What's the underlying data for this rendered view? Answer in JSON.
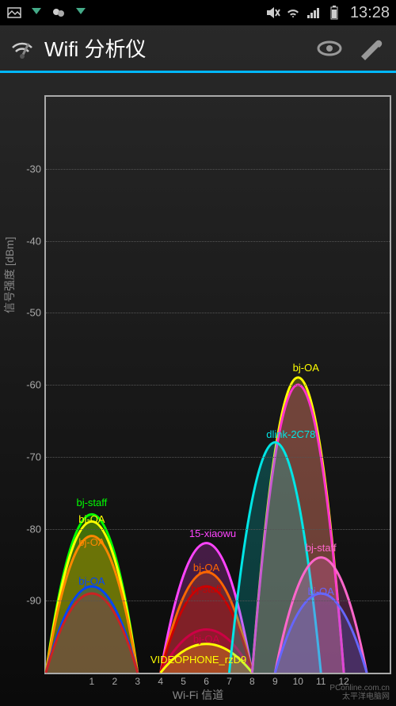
{
  "status_bar": {
    "time": "13:28",
    "icons_left": [
      "gallery",
      "download",
      "chat",
      "app"
    ],
    "icons_right": [
      "mute",
      "wifi",
      "signal",
      "battery"
    ]
  },
  "app_bar": {
    "title": "Wifi 分析仪",
    "toolbar": {
      "view_label": "view",
      "settings_label": "settings"
    }
  },
  "chart": {
    "type": "wifi-channel-parabolas",
    "y_axis": {
      "title": "信号强度 [dBm]",
      "min": -100,
      "max": -20,
      "ticks": [
        -30,
        -40,
        -50,
        -60,
        -70,
        -80,
        -90
      ],
      "grid_color": "#555555",
      "label_color": "#aaaaaa"
    },
    "x_axis": {
      "title": "Wi-Fi 信道",
      "min": -1,
      "max": 14,
      "ticks": [
        1,
        2,
        3,
        4,
        5,
        6,
        7,
        8,
        9,
        10,
        11,
        12
      ],
      "label_color": "#aaaaaa"
    },
    "background": "transparent",
    "border_color": "#aaaaaa",
    "networks": [
      {
        "ssid": "bj-staff",
        "channel": 1,
        "rssi": -78,
        "color": "#00ff00",
        "label_vshift": -6
      },
      {
        "ssid": "bj-OA",
        "channel": 1,
        "rssi": -79,
        "color": "#ffff00",
        "label_vshift": 6
      },
      {
        "ssid": "bj-OA",
        "channel": 1,
        "rssi": -81,
        "color": "#ff8800",
        "label_vshift": 16
      },
      {
        "ssid": "bj-OA",
        "channel": 1,
        "rssi": -88,
        "color": "#0044ff",
        "label_vshift": 2
      },
      {
        "ssid": "",
        "channel": 1,
        "rssi": -89,
        "color": "#cc2222",
        "label_vshift": 0
      },
      {
        "ssid": "15-xiaowu",
        "channel": 6,
        "rssi": -82,
        "color": "#ff44ff",
        "label_vshift": -4,
        "label_hshift": 8
      },
      {
        "ssid": "bj-OA",
        "channel": 6,
        "rssi": -86,
        "color": "#ff6600",
        "label_vshift": 3
      },
      {
        "ssid": "bj-staff",
        "channel": 6,
        "rssi": -88,
        "color": "#cc0000",
        "label_vshift": 12
      },
      {
        "ssid": "bj-OA",
        "channel": 6,
        "rssi": -94,
        "color": "#cc0044",
        "label_vshift": 20
      },
      {
        "ssid": "VIDEOPHONE_rzD9",
        "channel": 6,
        "rssi": -96,
        "color": "#ffff00",
        "label_vshift": 28,
        "label_hshift": -10
      },
      {
        "ssid": "bj-OA",
        "channel": 10,
        "rssi": -59,
        "color": "#ffff00",
        "label_vshift": -4,
        "label_hshift": 10
      },
      {
        "ssid": "",
        "channel": 10,
        "rssi": -60,
        "color": "#ff33cc",
        "label_vshift": 8
      },
      {
        "ssid": "dlink-2C78",
        "channel": 9,
        "rssi": -68,
        "color": "#00e5e5",
        "label_vshift": -2,
        "label_hshift": 20
      },
      {
        "ssid": "bj-staff",
        "channel": 11,
        "rssi": -84,
        "color": "#ff66cc",
        "label_vshift": -4
      },
      {
        "ssid": "bj-OA",
        "channel": 11,
        "rssi": -89,
        "color": "#6666ff",
        "label_vshift": 6
      }
    ],
    "line_width": 3,
    "fill_opacity": 0.22
  },
  "watermark": {
    "line1": "PConline.com.cn",
    "line2": "太平洋电脑网"
  }
}
